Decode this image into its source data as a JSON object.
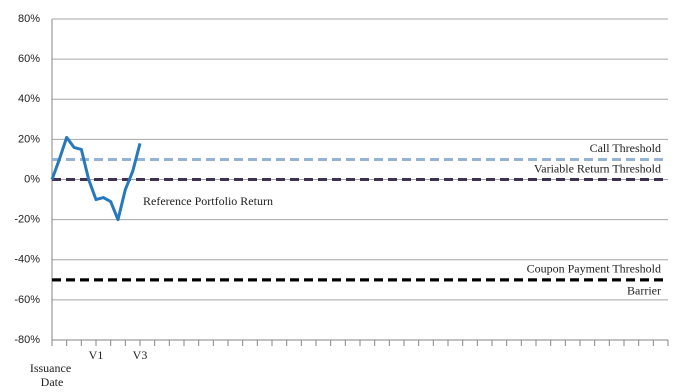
{
  "chart_data": {
    "type": "line",
    "categories": [
      "Issuance Date",
      null,
      null,
      null,
      null,
      null,
      "V1",
      null,
      null,
      null,
      null,
      null,
      "V3",
      null,
      null,
      null,
      null,
      null,
      null,
      null,
      null,
      null,
      null,
      null,
      null,
      null,
      null,
      null,
      null,
      null,
      null,
      null,
      null,
      null,
      null,
      null,
      null,
      null,
      null,
      null,
      null,
      null,
      null,
      null,
      null,
      null,
      null,
      null,
      null,
      null,
      null,
      null,
      null,
      null,
      null,
      null,
      null,
      null,
      null,
      null,
      null,
      null,
      null,
      null,
      null,
      null,
      null,
      null,
      null,
      null,
      null,
      null,
      null,
      null,
      null,
      null,
      null,
      null,
      null,
      null,
      null,
      null,
      null,
      null,
      null
    ],
    "series": [
      {
        "name": "Reference Portfolio Return",
        "color": "#2878bd",
        "values": [
          0,
          10,
          21,
          16,
          15,
          0,
          -10,
          -9,
          -11,
          -20,
          -5,
          4,
          18,
          null,
          null,
          null,
          null,
          null,
          null,
          null,
          null,
          null,
          null,
          null,
          null,
          null,
          null,
          null,
          null,
          null,
          null,
          null,
          null,
          null,
          null,
          null,
          null,
          null,
          null,
          null,
          null,
          null,
          null,
          null,
          null,
          null,
          null,
          null,
          null,
          null,
          null,
          null,
          null,
          null,
          null,
          null,
          null,
          null,
          null,
          null,
          null,
          null,
          null,
          null,
          null,
          null,
          null,
          null,
          null,
          null,
          null,
          null,
          null,
          null,
          null,
          null,
          null,
          null,
          null,
          null,
          null,
          null,
          null,
          null,
          null
        ]
      }
    ],
    "reference_lines": [
      {
        "name": "Call Threshold",
        "value": 10,
        "color": "#95b3d7"
      },
      {
        "name": "Variable Return Threshold",
        "value": 0,
        "color": "#403152"
      },
      {
        "name": "Coupon Payment Threshold",
        "value": -50,
        "color": "#000000"
      },
      {
        "name": "Barrier",
        "value": -50,
        "color": "#000000"
      }
    ],
    "ylim": [
      -80,
      80
    ],
    "yticks": [
      {
        "value": -80,
        "label": "-80%"
      },
      {
        "value": -60,
        "label": "-60%"
      },
      {
        "value": -40,
        "label": "-40%"
      },
      {
        "value": -20,
        "label": "-20%"
      },
      {
        "value": 0,
        "label": "0%"
      },
      {
        "value": 20,
        "label": "20%"
      },
      {
        "value": 40,
        "label": "40%"
      },
      {
        "value": 60,
        "label": "60%"
      },
      {
        "value": 80,
        "label": "80%"
      }
    ],
    "grid": true
  }
}
